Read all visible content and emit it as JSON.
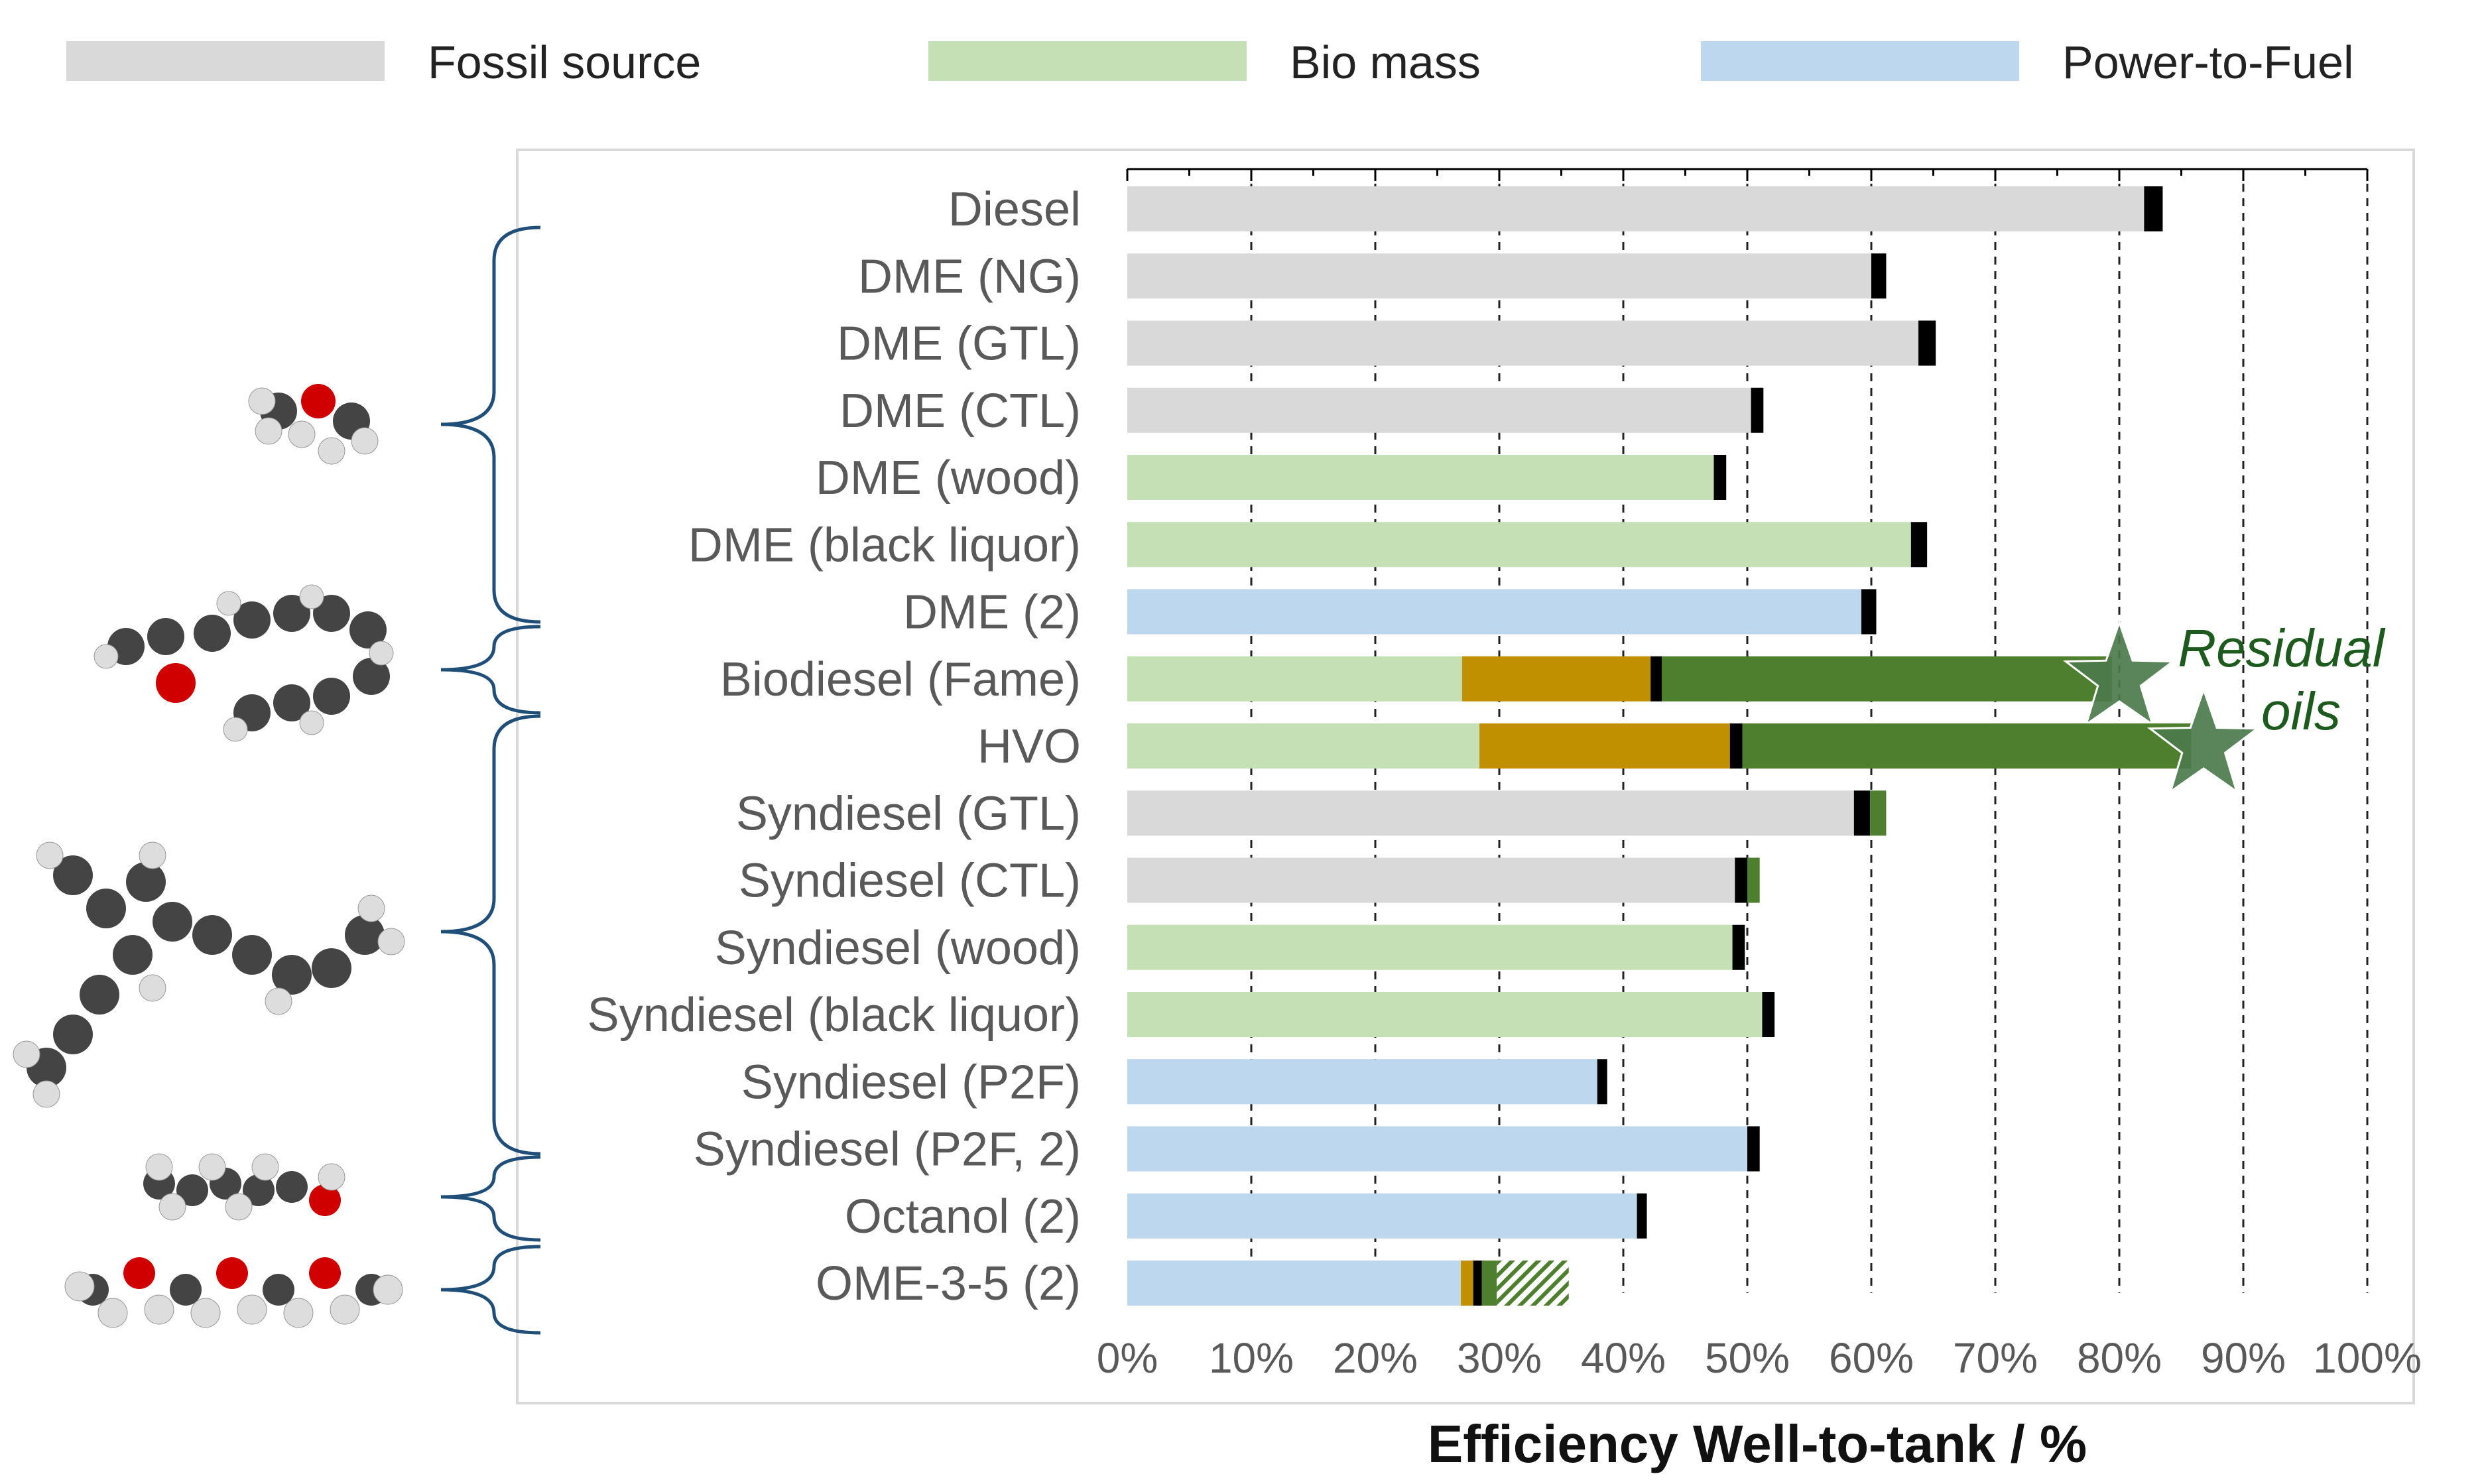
{
  "chart_data": {
    "type": "bar",
    "orientation": "horizontal-stacked",
    "xlabel": "Efficiency Well-to-tank / %",
    "xlim": [
      0,
      100
    ],
    "xticks": [
      "0%",
      "10%",
      "20%",
      "30%",
      "40%",
      "50%",
      "60%",
      "70%",
      "80%",
      "90%",
      "100%"
    ],
    "legend": [
      {
        "label": "Fossil source",
        "color": "#d9d9d9"
      },
      {
        "label": "Bio mass",
        "color": "#c5e0b4"
      },
      {
        "label": "Power-to-Fuel",
        "color": "#bdd7ee"
      }
    ],
    "segment_colors": {
      "fossil": "#d9d9d9",
      "bio": "#c5e0b4",
      "p2f": "#bdd7ee",
      "orange": "#c09000",
      "dark_green": "#4e7f2e",
      "marker": "#000000",
      "hatch": "#4e7f2e",
      "star": "#4c7a4c"
    },
    "annotation": {
      "line1": "Residual",
      "line2": "oils"
    },
    "categories": [
      "Diesel",
      "DME (NG)",
      "DME (GTL)",
      "DME (CTL)",
      "DME (wood)",
      "DME (black liquor)",
      "DME (2)",
      "Biodiesel (Fame)",
      "HVO",
      "Syndiesel (GTL)",
      "Syndiesel (CTL)",
      "Syndiesel (wood)",
      "Syndiesel (black liquor)",
      "Syndiesel (P2F)",
      "Syndiesel (P2F, 2)",
      "Octanol (2)",
      "OME-3-5 (2)"
    ],
    "bars": [
      {
        "segments": [
          {
            "t": "fossil",
            "v": 82
          },
          {
            "t": "marker",
            "v": 1.5
          }
        ]
      },
      {
        "segments": [
          {
            "t": "fossil",
            "v": 60
          },
          {
            "t": "marker",
            "v": 1.2
          }
        ]
      },
      {
        "segments": [
          {
            "t": "fossil",
            "v": 63.8
          },
          {
            "t": "marker",
            "v": 1.4
          }
        ]
      },
      {
        "segments": [
          {
            "t": "fossil",
            "v": 50.3
          },
          {
            "t": "marker",
            "v": 1.0
          }
        ]
      },
      {
        "segments": [
          {
            "t": "bio",
            "v": 47.3
          },
          {
            "t": "marker",
            "v": 1.0
          }
        ]
      },
      {
        "segments": [
          {
            "t": "bio",
            "v": 63.2
          },
          {
            "t": "marker",
            "v": 1.3
          }
        ]
      },
      {
        "segments": [
          {
            "t": "p2f",
            "v": 59.2
          },
          {
            "t": "marker",
            "v": 1.2
          }
        ]
      },
      {
        "segments": [
          {
            "t": "bio",
            "v": 27.0
          },
          {
            "t": "orange",
            "v": 15.2
          },
          {
            "t": "marker",
            "v": 0.9
          },
          {
            "t": "dark_green",
            "v": 36.3
          }
        ],
        "star": 80
      },
      {
        "segments": [
          {
            "t": "bio",
            "v": 28.4
          },
          {
            "t": "orange",
            "v": 20.2
          },
          {
            "t": "marker",
            "v": 1.0
          },
          {
            "t": "dark_green",
            "v": 36.2
          }
        ],
        "star": 86.8
      },
      {
        "segments": [
          {
            "t": "fossil",
            "v": 58.6
          },
          {
            "t": "marker",
            "v": 1.3
          },
          {
            "t": "dark_green",
            "v": 1.3
          }
        ]
      },
      {
        "segments": [
          {
            "t": "fossil",
            "v": 49.0
          },
          {
            "t": "marker",
            "v": 1.0
          },
          {
            "t": "dark_green",
            "v": 1.0
          }
        ]
      },
      {
        "segments": [
          {
            "t": "bio",
            "v": 48.8
          },
          {
            "t": "marker",
            "v": 1.0
          }
        ]
      },
      {
        "segments": [
          {
            "t": "bio",
            "v": 51.2
          },
          {
            "t": "marker",
            "v": 1.0
          }
        ]
      },
      {
        "segments": [
          {
            "t": "p2f",
            "v": 37.9
          },
          {
            "t": "marker",
            "v": 0.8
          }
        ]
      },
      {
        "segments": [
          {
            "t": "p2f",
            "v": 50.0
          },
          {
            "t": "marker",
            "v": 1.0
          }
        ]
      },
      {
        "segments": [
          {
            "t": "p2f",
            "v": 41.1
          },
          {
            "t": "marker",
            "v": 0.8
          }
        ]
      },
      {
        "segments": [
          {
            "t": "p2f",
            "v": 26.9
          },
          {
            "t": "orange",
            "v": 1.0
          },
          {
            "t": "marker",
            "v": 0.7
          },
          {
            "t": "dark_green",
            "v": 1.2
          },
          {
            "t": "hatch",
            "v": 5.8
          }
        ]
      }
    ]
  }
}
